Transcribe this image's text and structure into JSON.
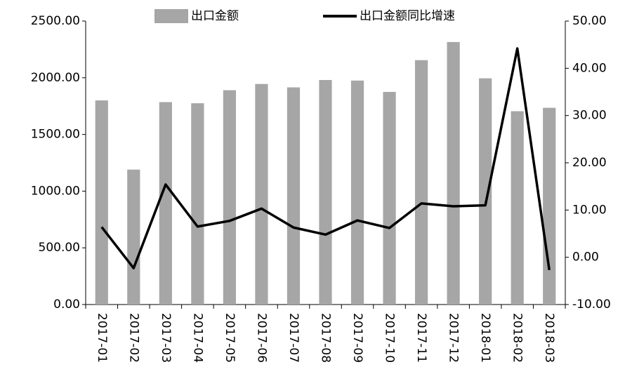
{
  "chart_data": {
    "type": "bar-line",
    "categories": [
      "2017-01",
      "2017-02",
      "2017-03",
      "2017-04",
      "2017-05",
      "2017-06",
      "2017-07",
      "2017-08",
      "2017-09",
      "2017-10",
      "2017-11",
      "2017-12",
      "2018-01",
      "2018-02",
      "2018-03"
    ],
    "series": [
      {
        "name": "出口金额",
        "type": "bar",
        "color": "#a6a6a6",
        "axis": "y",
        "values": [
          1800,
          1190,
          1785,
          1775,
          1890,
          1945,
          1915,
          1980,
          1975,
          1875,
          2155,
          2315,
          1995,
          1705,
          1735
        ]
      },
      {
        "name": "出口金额同比增速",
        "type": "line",
        "color": "#000000",
        "axis": "y2",
        "values": [
          6.4,
          -2.3,
          15.4,
          6.5,
          7.7,
          10.3,
          6.3,
          4.8,
          7.8,
          6.2,
          11.4,
          10.8,
          11.0,
          44.2,
          -2.7
        ]
      }
    ],
    "ylim": [
      0,
      2500
    ],
    "yticks": [
      {
        "value": 0,
        "label": "0.00"
      },
      {
        "value": 500,
        "label": "500.00"
      },
      {
        "value": 1000,
        "label": "1000.00"
      },
      {
        "value": 1500,
        "label": "1500.00"
      },
      {
        "value": 2000,
        "label": "2000.00"
      },
      {
        "value": 2500,
        "label": "2500.00"
      }
    ],
    "y2lim": [
      -10,
      50
    ],
    "y2ticks": [
      {
        "value": -10,
        "label": "-10.00"
      },
      {
        "value": 0,
        "label": "0.00"
      },
      {
        "value": 10,
        "label": "10.00"
      },
      {
        "value": 20,
        "label": "20.00"
      },
      {
        "value": 30,
        "label": "30.00"
      },
      {
        "value": 40,
        "label": "40.00"
      },
      {
        "value": 50,
        "label": "50.00"
      }
    ],
    "legend": "top",
    "grid": false
  }
}
